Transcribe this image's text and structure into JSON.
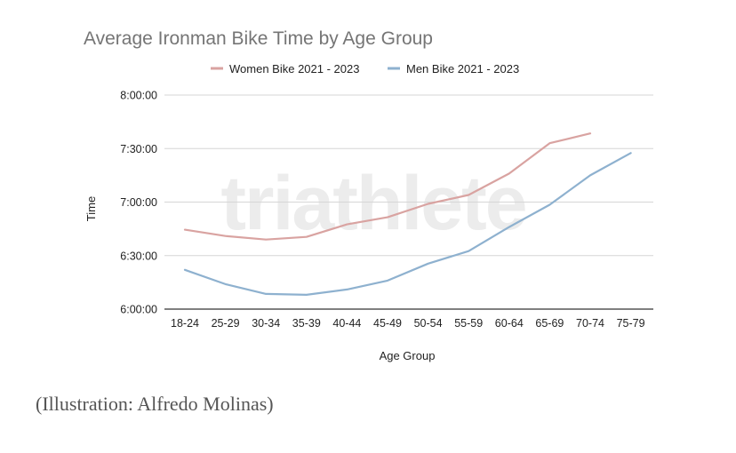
{
  "caption": "(Illustration: Alfredo Molinas)",
  "watermark": "triathlete",
  "chart_data": {
    "type": "line",
    "title": "Average Ironman Bike Time by Age Group",
    "xlabel": "Age Group",
    "ylabel": "Time",
    "categories": [
      "18-24",
      "25-29",
      "30-34",
      "35-39",
      "40-44",
      "45-49",
      "50-54",
      "55-59",
      "60-64",
      "65-69",
      "70-74",
      "75-79"
    ],
    "y_unit": "minutes",
    "ylim": [
      360,
      480
    ],
    "yticks": [
      360,
      390,
      420,
      450,
      480
    ],
    "ytick_labels": [
      "6:00:00",
      "6:30:00",
      "7:00:00",
      "7:30:00",
      "8:00:00"
    ],
    "grid": true,
    "legend_position": "top",
    "series": [
      {
        "name": "Women Bike 2021 - 2023",
        "color": "#d9a3a1",
        "values": [
          404.5,
          401,
          399,
          400.5,
          407.5,
          411.5,
          419,
          424,
          436,
          453,
          458.5,
          null
        ]
      },
      {
        "name": "Men Bike 2021 - 2023",
        "color": "#8eb1cf",
        "values": [
          382,
          374,
          368.5,
          368,
          371,
          376,
          385.5,
          392.5,
          406,
          418.5,
          435,
          447.5
        ]
      }
    ]
  }
}
